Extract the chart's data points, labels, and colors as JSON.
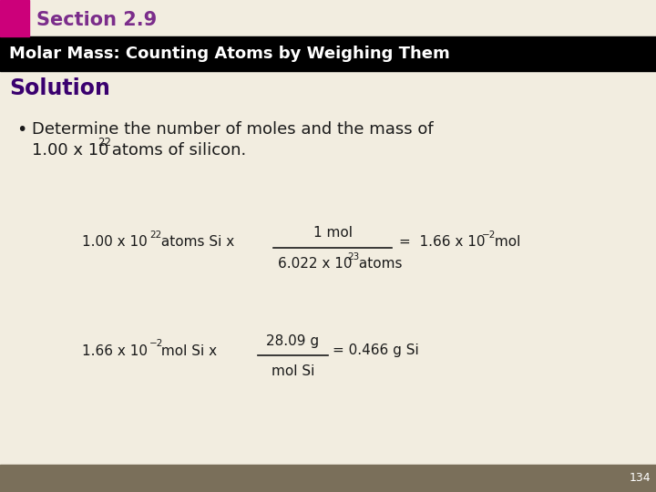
{
  "section_title": "Section 2.9",
  "section_title_color": "#7B2D8B",
  "header_text": "Molar Mass: Counting Atoms by Weighing Them",
  "header_bg": "#000000",
  "header_text_color": "#FFFFFF",
  "solution_text": "Solution",
  "solution_color": "#3A006F",
  "bg_color": "#F2EDE0",
  "footer_bg": "#7A6F5A",
  "footer_page": "134",
  "pink_bar_color": "#CC007A",
  "text_color": "#1A1A1A"
}
